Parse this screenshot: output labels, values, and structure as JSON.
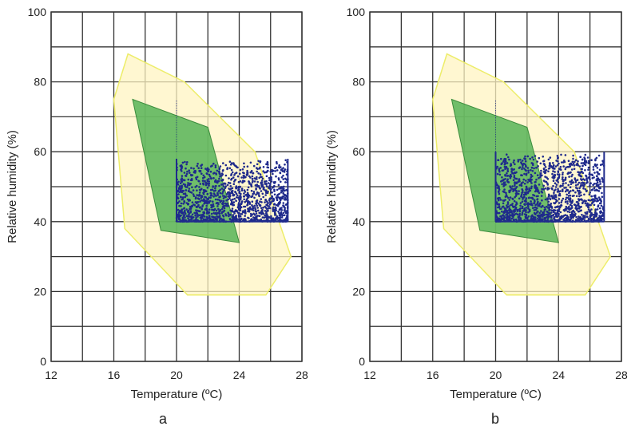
{
  "chart_data": [
    {
      "type": "scatter",
      "panel_label": "a",
      "xlabel": "Temperature (ºC)",
      "ylabel": "Relative humidity (%)",
      "xlim": [
        12,
        28
      ],
      "ylim": [
        0,
        100
      ],
      "x_ticks": [
        12,
        16,
        20,
        24,
        28
      ],
      "y_ticks": [
        0,
        20,
        40,
        60,
        80,
        100
      ],
      "grid": true,
      "regions": [
        {
          "name": "yellow zone",
          "color": "#fff4c2",
          "stroke": "#eded6a",
          "polygon": [
            [
              16.9,
              88
            ],
            [
              20.5,
              80
            ],
            [
              25,
              60
            ],
            [
              27.3,
              30
            ],
            [
              25.7,
              19
            ],
            [
              20.7,
              19
            ],
            [
              16.7,
              38
            ],
            [
              16,
              75
            ]
          ]
        },
        {
          "name": "green zone",
          "color": "#4caf50",
          "stroke": "#3a8c3c",
          "polygon": [
            [
              17.2,
              75
            ],
            [
              22,
              67
            ],
            [
              24,
              34
            ],
            [
              19,
              37.5
            ]
          ]
        }
      ],
      "scatter_region": {
        "x_range": [
          20,
          27.1
        ],
        "y_range": [
          40,
          58
        ],
        "n_points": 1400,
        "color": "#1f2a8c",
        "seed": 11
      }
    },
    {
      "type": "scatter",
      "panel_label": "b",
      "xlabel": "Temperature (ºC)",
      "ylabel": "Relative humidity (%)",
      "xlim": [
        12,
        28
      ],
      "ylim": [
        0,
        100
      ],
      "x_ticks": [
        12,
        16,
        20,
        24,
        28
      ],
      "y_ticks": [
        0,
        20,
        40,
        60,
        80,
        100
      ],
      "grid": true,
      "regions": [
        {
          "name": "yellow zone",
          "color": "#fff4c2",
          "stroke": "#eded6a",
          "polygon": [
            [
              16.9,
              88
            ],
            [
              20.5,
              80
            ],
            [
              25,
              60
            ],
            [
              27.3,
              30
            ],
            [
              25.7,
              19
            ],
            [
              20.7,
              19
            ],
            [
              16.7,
              38
            ],
            [
              16,
              75
            ]
          ]
        },
        {
          "name": "green zone",
          "color": "#4caf50",
          "stroke": "#3a8c3c",
          "polygon": [
            [
              17.2,
              75
            ],
            [
              22,
              67
            ],
            [
              24,
              34
            ],
            [
              19,
              37.5
            ]
          ]
        }
      ],
      "scatter_region": {
        "x_range": [
          20,
          26.9
        ],
        "y_range": [
          40,
          60
        ],
        "n_points": 1400,
        "color": "#1f2a8c",
        "seed": 29
      }
    }
  ]
}
